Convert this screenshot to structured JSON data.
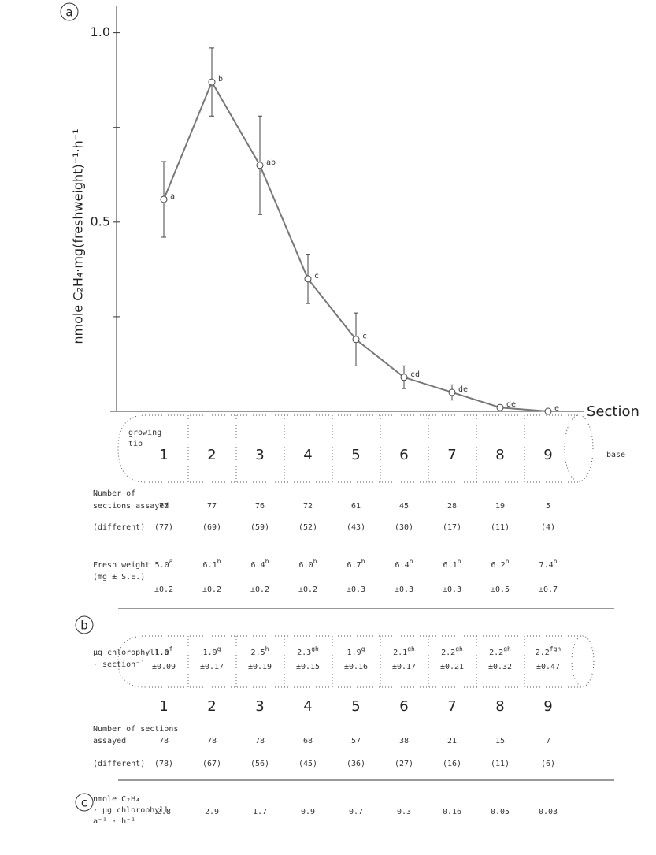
{
  "panel_labels": [
    "a",
    "b",
    "c"
  ],
  "chart_data": {
    "type": "line",
    "y_label": "nmole C₂H₄·mg(freshweight)⁻¹·h⁻¹",
    "x_label": "Section",
    "categories": [
      "1",
      "2",
      "3",
      "4",
      "5",
      "6",
      "7",
      "8",
      "9"
    ],
    "series": [
      {
        "color": "#777777",
        "values": [
          0.56,
          0.87,
          0.65,
          0.35,
          0.19,
          0.09,
          0.05,
          0.01,
          0
        ],
        "errors": [
          0.1,
          0.09,
          0.13,
          0.065,
          0.07,
          0.03,
          0.02,
          0.005,
          0
        ],
        "point_labels": [
          "a",
          "b",
          "ab",
          "c",
          "c",
          "cd",
          "de",
          "de",
          "e"
        ]
      }
    ],
    "ylim": [
      0,
      1.07
    ],
    "yticks": [
      0.5,
      {
        "value": 1,
        "label": "1.0"
      }
    ],
    "minor_yticks": [
      0.25,
      0.75
    ]
  },
  "panel_a": {
    "tip_label": [
      "growing",
      "tip"
    ],
    "base_label": "base",
    "assayed": {
      "label": [
        "Number of",
        "sections assayed"
      ],
      "cells": [
        "77",
        "77",
        "76",
        "72",
        "61",
        "45",
        "28",
        "19",
        "5"
      ]
    },
    "different": {
      "label": [
        "(different)"
      ],
      "cells": [
        "(77)",
        "(69)",
        "(59)",
        "(52)",
        "(43)",
        "(30)",
        "(17)",
        "(11)",
        "(4)"
      ]
    },
    "fresh_weight": {
      "label": [
        "Fresh weight",
        "(mg ± S.E.)"
      ],
      "means": [
        "5.0",
        "6.1",
        "6.4",
        "6.0",
        "6.7",
        "6.4",
        "6.1",
        "6.2",
        "7.4"
      ],
      "letters": [
        "a",
        "b",
        "b",
        "b",
        "b",
        "b",
        "b",
        "b",
        "b"
      ],
      "se": [
        "±0.2",
        "±0.2",
        "±0.2",
        "±0.2",
        "±0.3",
        "±0.3",
        "±0.3",
        "±0.5",
        "±0.7"
      ]
    }
  },
  "panel_b": {
    "chlorophyll": {
      "label": [
        "µg chlorophyll a",
        "· section⁻¹"
      ],
      "means": [
        "1.0",
        "1.9",
        "2.5",
        "2.3",
        "1.9",
        "2.1",
        "2.2",
        "2.2",
        "2.2"
      ],
      "letters": [
        "f",
        "g",
        "h",
        "gh",
        "g",
        "gh",
        "gh",
        "gh",
        "fgh"
      ],
      "se": [
        "±0.09",
        "±0.17",
        "±0.19",
        "±0.15",
        "±0.16",
        "±0.17",
        "±0.21",
        "±0.32",
        "±0.47"
      ]
    },
    "sections": [
      "1",
      "2",
      "3",
      "4",
      "5",
      "6",
      "7",
      "8",
      "9"
    ],
    "assayed": {
      "label": [
        "Number of sections",
        "assayed"
      ],
      "cells": [
        "78",
        "78",
        "78",
        "68",
        "57",
        "38",
        "21",
        "15",
        "7"
      ]
    },
    "different": {
      "label": [
        "(different)"
      ],
      "cells": [
        "(78)",
        "(67)",
        "(56)",
        "(45)",
        "(36)",
        "(27)",
        "(16)",
        "(11)",
        "(6)"
      ]
    }
  },
  "panel_c": {
    "label": [
      "nmole C₂H₄",
      "· µg chlorophyll",
      "a⁻¹ · h⁻¹"
    ],
    "cells": [
      "2.8",
      "2.9",
      "1.7",
      "0.9",
      "0.7",
      "0.3",
      "0.16",
      "0.05",
      "0.03"
    ]
  }
}
